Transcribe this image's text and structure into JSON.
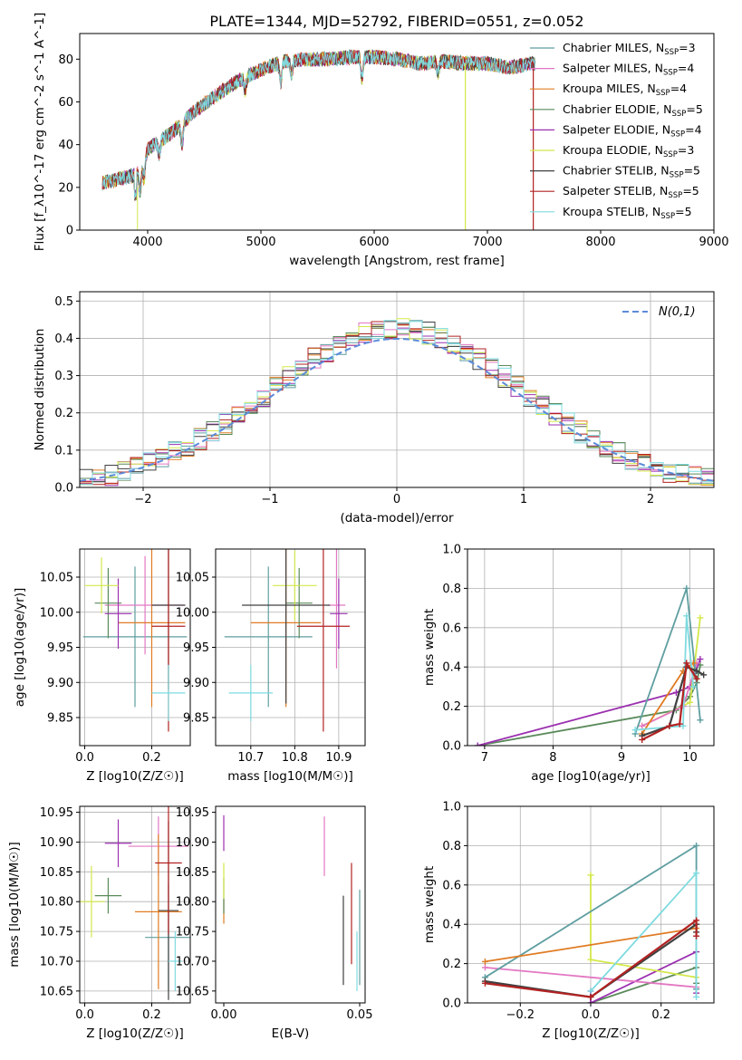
{
  "title": "PLATE=1344, MJD=52792, FIBERID=0551, z=0.052",
  "colors": {
    "Chabrier MILES": "#5f9ea0",
    "Salpeter MILES": "#e377c2",
    "Kroupa MILES": "#e07b22",
    "Chabrier ELODIE": "#5a8a5a",
    "Salpeter ELODIE": "#9b30b0",
    "Kroupa ELODIE": "#d4e84a",
    "Chabrier STELIB": "#404040",
    "Salpeter STELIB": "#b22222",
    "Kroupa STELIB": "#7fdbe0",
    "normal": "#5b8bd9"
  },
  "chart_data": [
    {
      "id": "spectrum",
      "type": "line",
      "xlabel": "wavelength [Angstrom, rest frame]",
      "ylabel": "Flux [f_λ10^-17 erg cm^-2 s^-1 A^-1]",
      "xlim": [
        3400,
        9000
      ],
      "ylim": [
        0,
        92
      ],
      "xticks": [
        4000,
        5000,
        6000,
        7000,
        8000,
        9000
      ],
      "yticks": [
        0,
        20,
        40,
        60,
        80
      ],
      "grid": false,
      "legend": "right",
      "series": [
        {
          "name": "Chabrier MILES, N_SSP=3",
          "label": "Chabrier MILES, N",
          "nssp": "=3"
        },
        {
          "name": "Salpeter MILES, N_SSP=4",
          "label": "Salpeter MILES, N",
          "nssp": "=4"
        },
        {
          "name": "Kroupa MILES, N_SSP=4",
          "label": "Kroupa MILES, N",
          "nssp": "=4"
        },
        {
          "name": "Chabrier ELODIE, N_SSP=5",
          "label": "Chabrier ELODIE, N",
          "nssp": "=5"
        },
        {
          "name": "Salpeter ELODIE, N_SSP=4",
          "label": "Salpeter ELODIE, N",
          "nssp": "=4"
        },
        {
          "name": "Kroupa ELODIE, N_SSP=3",
          "label": "Kroupa ELODIE, N",
          "nssp": "=3"
        },
        {
          "name": "Chabrier STELIB, N_SSP=5",
          "label": "Chabrier STELIB, N",
          "nssp": "=5"
        },
        {
          "name": "Salpeter STELIB, N_SSP=5",
          "label": "Salpeter STELIB, N",
          "nssp": "=5"
        },
        {
          "name": "Kroupa STELIB, N_SSP=5",
          "label": "Kroupa STELIB, N",
          "nssp": "=5"
        }
      ],
      "continuum": {
        "x": [
          3600,
          3750,
          3900,
          4000,
          4200,
          4400,
          4600,
          4800,
          5000,
          5200,
          5400,
          5600,
          5800,
          6000,
          6200,
          6400,
          6600,
          6800,
          7000,
          7200,
          7400
        ],
        "y": [
          22,
          24,
          26,
          38,
          45,
          55,
          63,
          70,
          75,
          79,
          80,
          80,
          81,
          81,
          80,
          78,
          79,
          78,
          78,
          76,
          78
        ]
      }
    },
    {
      "id": "residuals",
      "type": "area",
      "xlabel": "(data-model)/error",
      "ylabel": "Normed distribution",
      "xlim": [
        -2.5,
        2.5
      ],
      "ylim": [
        0,
        0.525
      ],
      "xticks": [
        -2,
        -1,
        0,
        1,
        2
      ],
      "yticks": [
        0.0,
        0.1,
        0.2,
        0.3,
        0.4,
        0.5
      ],
      "grid": true,
      "legend": "top-right",
      "legend_label": "N(0,1)",
      "bins": 50
    },
    {
      "id": "age_vs_Z",
      "type": "scatter",
      "xlabel": "Z [log10(Z/Z☉)]",
      "ylabel": "age [log10(age/yr)]",
      "xlim": [
        -0.015,
        0.315
      ],
      "ylim": [
        9.81,
        10.09
      ],
      "xticks": [
        0.0,
        0.2
      ],
      "yticks": [
        9.85,
        9.9,
        9.95,
        10.0,
        10.05
      ],
      "grid": true,
      "points": [
        {
          "model": "Chabrier MILES",
          "x": 0.15,
          "y": 9.965,
          "xerr": 0.155,
          "yerr": 0.1
        },
        {
          "model": "Salpeter MILES",
          "x": 0.18,
          "y": 10.01,
          "xerr": 0.12,
          "yerr": 0.07
        },
        {
          "model": "Kroupa MILES",
          "x": 0.2,
          "y": 9.985,
          "xerr": 0.1,
          "yerr": 0.12
        },
        {
          "model": "Chabrier ELODIE",
          "x": 0.07,
          "y": 10.013,
          "xerr": 0.04,
          "yerr": 0.05
        },
        {
          "model": "Salpeter ELODIE",
          "x": 0.1,
          "y": 9.998,
          "xerr": 0.04,
          "yerr": 0.05
        },
        {
          "model": "Kroupa ELODIE",
          "x": 0.05,
          "y": 10.038,
          "xerr": 0.05,
          "yerr": 0.04
        },
        {
          "model": "Chabrier STELIB",
          "x": 0.25,
          "y": 10.01,
          "xerr": 0.05,
          "yerr": 0.12
        },
        {
          "model": "Salpeter STELIB",
          "x": 0.25,
          "y": 9.98,
          "xerr": 0.05,
          "yerr": 0.15
        },
        {
          "model": "Kroupa STELIB",
          "x": 0.25,
          "y": 9.885,
          "xerr": 0.05,
          "yerr": 0.04
        }
      ]
    },
    {
      "id": "age_vs_mass",
      "type": "scatter",
      "xlabel": "mass [log10(M/M☉)]",
      "ylabel": "",
      "xlim": [
        10.62,
        10.96
      ],
      "ylim": [
        9.81,
        10.09
      ],
      "xticks": [
        10.7,
        10.8,
        10.9
      ],
      "yticks": [
        9.85,
        9.9,
        9.95,
        10.0,
        10.05
      ],
      "grid": true,
      "points": [
        {
          "model": "Chabrier MILES",
          "x": 10.74,
          "y": 9.965,
          "xerr": 0.1,
          "yerr": 0.1
        },
        {
          "model": "Salpeter MILES",
          "x": 10.895,
          "y": 10.01,
          "xerr": 0.02,
          "yerr": 0.09
        },
        {
          "model": "Kroupa MILES",
          "x": 10.78,
          "y": 9.985,
          "xerr": 0.08,
          "yerr": 0.12
        },
        {
          "model": "Chabrier ELODIE",
          "x": 10.81,
          "y": 10.013,
          "xerr": 0.03,
          "yerr": 0.05
        },
        {
          "model": "Salpeter ELODIE",
          "x": 10.9,
          "y": 9.998,
          "xerr": 0.02,
          "yerr": 0.05
        },
        {
          "model": "Kroupa ELODIE",
          "x": 10.8,
          "y": 10.038,
          "xerr": 0.05,
          "yerr": 0.05
        },
        {
          "model": "Chabrier STELIB",
          "x": 10.78,
          "y": 10.01,
          "xerr": 0.1,
          "yerr": 0.14
        },
        {
          "model": "Salpeter STELIB",
          "x": 10.865,
          "y": 9.98,
          "xerr": 0.06,
          "yerr": 0.15
        },
        {
          "model": "Kroupa STELIB",
          "x": 10.7,
          "y": 9.885,
          "xerr": 0.05,
          "yerr": 0.04
        }
      ]
    },
    {
      "id": "weight_vs_age",
      "type": "line",
      "xlabel": "age [log10(age/yr)]",
      "ylabel": "mass weight",
      "xlim": [
        6.75,
        10.35
      ],
      "ylim": [
        0.0,
        1.0
      ],
      "xticks": [
        7,
        8,
        9,
        10
      ],
      "yticks": [
        0.0,
        0.2,
        0.4,
        0.6,
        0.8,
        1.0
      ],
      "grid": true,
      "series": [
        {
          "model": "Chabrier MILES",
          "x": [
            9.2,
            9.95,
            10.15
          ],
          "y": [
            0.06,
            0.8,
            0.13
          ]
        },
        {
          "model": "Salpeter MILES",
          "x": [
            9.3,
            9.9,
            10.1
          ],
          "y": [
            0.1,
            0.2,
            0.42
          ]
        },
        {
          "model": "Kroupa MILES",
          "x": [
            9.3,
            9.9,
            10.05
          ],
          "y": [
            0.06,
            0.38,
            0.42
          ]
        },
        {
          "model": "Chabrier ELODIE",
          "x": [
            6.9,
            9.8,
            10.0,
            10.1,
            10.15
          ],
          "y": [
            0.0,
            0.18,
            0.25,
            0.32,
            0.41
          ]
        },
        {
          "model": "Salpeter ELODIE",
          "x": [
            6.9,
            9.8,
            10.0,
            10.15
          ],
          "y": [
            0.0,
            0.27,
            0.3,
            0.44
          ]
        },
        {
          "model": "Kroupa ELODIE",
          "x": [
            9.3,
            10.0,
            10.15
          ],
          "y": [
            0.1,
            0.22,
            0.65
          ]
        },
        {
          "model": "Chabrier STELIB",
          "x": [
            9.3,
            9.7,
            9.95,
            10.1,
            10.2
          ],
          "y": [
            0.05,
            0.1,
            0.4,
            0.38,
            0.36
          ]
        },
        {
          "model": "Salpeter STELIB",
          "x": [
            9.3,
            9.7,
            9.85,
            9.95,
            10.1
          ],
          "y": [
            0.03,
            0.1,
            0.11,
            0.42,
            0.34
          ]
        },
        {
          "model": "Kroupa STELIB",
          "x": [
            9.2,
            9.9,
            9.95,
            10.05
          ],
          "y": [
            0.08,
            0.1,
            0.66,
            0.3
          ]
        }
      ]
    },
    {
      "id": "mass_vs_Z",
      "type": "scatter",
      "xlabel": "Z [log10(Z/Z☉)]",
      "ylabel": "mass [log10(M/M☉)]",
      "xlim": [
        -0.015,
        0.315
      ],
      "ylim": [
        10.63,
        10.96
      ],
      "xticks": [
        0.0,
        0.2
      ],
      "yticks": [
        10.65,
        10.7,
        10.75,
        10.8,
        10.85,
        10.9,
        10.95
      ],
      "grid": true,
      "points": [
        {
          "model": "Chabrier MILES",
          "x": 0.25,
          "y": 10.74,
          "xerr": 0.07,
          "yerr": 0.09
        },
        {
          "model": "Salpeter MILES",
          "x": 0.22,
          "y": 10.893,
          "xerr": 0.09,
          "yerr": 0.05
        },
        {
          "model": "Kroupa MILES",
          "x": 0.22,
          "y": 10.783,
          "xerr": 0.07,
          "yerr": 0.13
        },
        {
          "model": "Chabrier ELODIE",
          "x": 0.07,
          "y": 10.81,
          "xerr": 0.04,
          "yerr": 0.03
        },
        {
          "model": "Salpeter ELODIE",
          "x": 0.1,
          "y": 10.898,
          "xerr": 0.04,
          "yerr": 0.04
        },
        {
          "model": "Kroupa ELODIE",
          "x": 0.02,
          "y": 10.8,
          "xerr": 0.04,
          "yerr": 0.06
        },
        {
          "model": "Chabrier STELIB",
          "x": 0.25,
          "y": 10.785,
          "xerr": 0.03,
          "yerr": 0.15
        },
        {
          "model": "Salpeter STELIB",
          "x": 0.25,
          "y": 10.865,
          "xerr": 0.04,
          "yerr": 0.12
        },
        {
          "model": "Kroupa STELIB",
          "x": 0.27,
          "y": 10.7,
          "xerr": 0.02,
          "yerr": 0.05
        }
      ]
    },
    {
      "id": "mass_vs_EBV",
      "type": "scatter",
      "xlabel": "E(B-V)",
      "ylabel": "",
      "xlim": [
        -0.003,
        0.052
      ],
      "ylim": [
        10.63,
        10.96
      ],
      "xticks": [
        0.0,
        0.05
      ],
      "yticks": [
        10.65,
        10.7,
        10.75,
        10.8,
        10.85,
        10.9,
        10.95
      ],
      "grid": false,
      "points": [
        {
          "model": "Chabrier MILES",
          "x": 0.05,
          "y": 10.74,
          "xerr": 0,
          "yerr": 0.08
        },
        {
          "model": "Salpeter MILES",
          "x": 0.037,
          "y": 10.893,
          "xerr": 0,
          "yerr": 0.05
        },
        {
          "model": "Kroupa MILES",
          "x": 0.0,
          "y": 10.783,
          "xerr": 0,
          "yerr": 0.02
        },
        {
          "model": "Chabrier ELODIE",
          "x": 0.0,
          "y": 10.81,
          "xerr": 0,
          "yerr": 0.03
        },
        {
          "model": "Salpeter ELODIE",
          "x": 0.0,
          "y": 10.915,
          "xerr": 0,
          "yerr": 0.03
        },
        {
          "model": "Kroupa ELODIE",
          "x": 0.0,
          "y": 10.835,
          "xerr": 0,
          "yerr": 0.03
        },
        {
          "model": "Chabrier STELIB",
          "x": 0.044,
          "y": 10.735,
          "xerr": 0,
          "yerr": 0.075
        },
        {
          "model": "Salpeter STELIB",
          "x": 0.047,
          "y": 10.78,
          "xerr": 0,
          "yerr": 0.085
        },
        {
          "model": "Kroupa STELIB",
          "x": 0.049,
          "y": 10.7,
          "xerr": 0,
          "yerr": 0.05
        }
      ]
    },
    {
      "id": "weight_vs_Z",
      "type": "line",
      "xlabel": "Z [log10(Z/Z☉)]",
      "ylabel": "mass weight",
      "xlim": [
        -0.35,
        0.35
      ],
      "ylim": [
        0.0,
        1.0
      ],
      "xticks": [
        -0.2,
        0.0,
        0.2
      ],
      "yticks": [
        0.0,
        0.2,
        0.4,
        0.6,
        0.8,
        1.0
      ],
      "grid": true,
      "series": [
        {
          "model": "Chabrier MILES",
          "x": [
            -0.3,
            0.3,
            0.3
          ],
          "y": [
            0.13,
            0.8,
            0.07
          ]
        },
        {
          "model": "Salpeter MILES",
          "x": [
            -0.3,
            0.3
          ],
          "y": [
            0.18,
            0.08
          ]
        },
        {
          "model": "Kroupa MILES",
          "x": [
            -0.3,
            0.3,
            0.3
          ],
          "y": [
            0.21,
            0.38,
            0.4
          ]
        },
        {
          "model": "Chabrier ELODIE",
          "x": [
            0.0,
            0.3,
            0.3
          ],
          "y": [
            0.0,
            0.18,
            0.1
          ]
        },
        {
          "model": "Salpeter ELODIE",
          "x": [
            0.0,
            0.0,
            0.3,
            0.3
          ],
          "y": [
            0.06,
            0.0,
            0.26,
            0.05
          ]
        },
        {
          "model": "Kroupa ELODIE",
          "x": [
            0.0,
            0.0,
            0.3
          ],
          "y": [
            0.65,
            0.22,
            0.13
          ]
        },
        {
          "model": "Chabrier STELIB",
          "x": [
            -0.3,
            0.0,
            0.3,
            0.3
          ],
          "y": [
            0.11,
            0.03,
            0.4,
            0.36
          ]
        },
        {
          "model": "Salpeter STELIB",
          "x": [
            -0.3,
            0.0,
            0.3,
            0.3
          ],
          "y": [
            0.1,
            0.03,
            0.42,
            0.34
          ]
        },
        {
          "model": "Kroupa STELIB",
          "x": [
            0.0,
            0.3,
            0.3
          ],
          "y": [
            0.06,
            0.66,
            0.03
          ]
        }
      ]
    }
  ]
}
